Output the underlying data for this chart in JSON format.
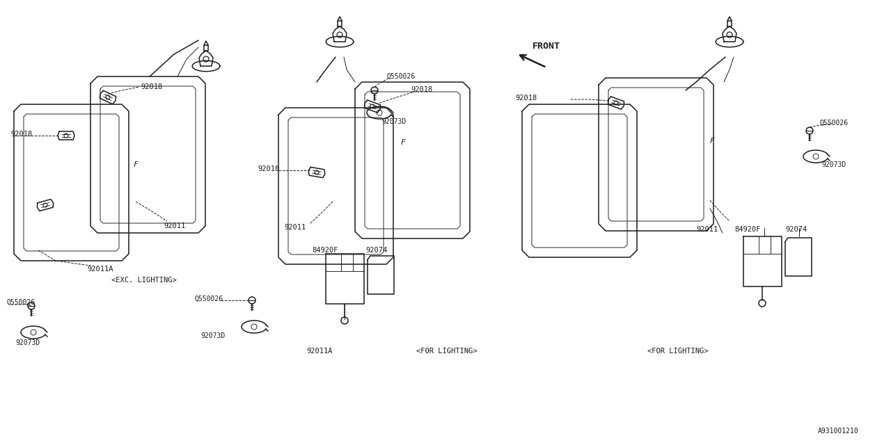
{
  "bg_color": "#ffffff",
  "line_color": "#1a1a1a",
  "fig_width": 12.8,
  "fig_height": 6.4,
  "dpi": 100,
  "diagram_code": "A931001210",
  "exc_lighting": "<EXC. LIGHTING>",
  "for_lighting": "<FOR LIGHTING>",
  "front_label": "FRONT",
  "font_size_label": 7.5,
  "font_size_code": 7.0,
  "lw_main": 1.1,
  "lw_thin": 0.7,
  "lw_dash": 0.7
}
